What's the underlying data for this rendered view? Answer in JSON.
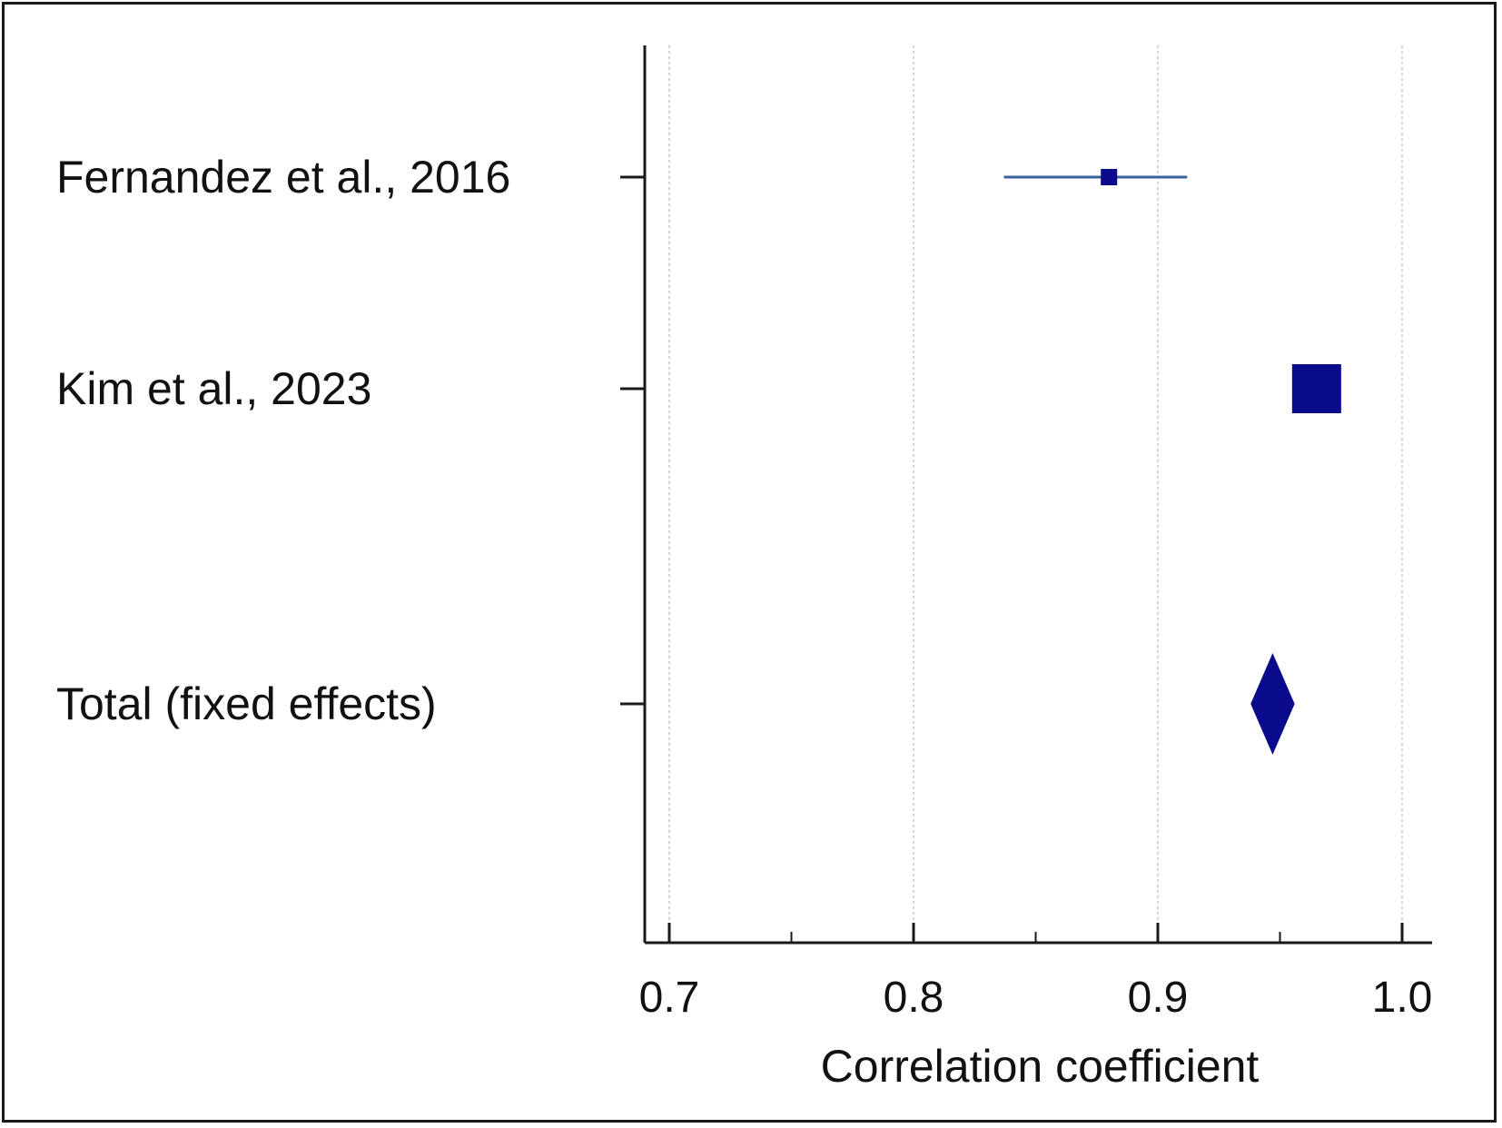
{
  "chart_data": {
    "type": "forest",
    "title": "",
    "xlabel": "Correlation coefficient",
    "ylabel": "",
    "xlim": [
      0.69,
      1.01
    ],
    "xticks": [
      0.7,
      0.8,
      0.9,
      1.0
    ],
    "xtick_labels": [
      "0.7",
      "0.8",
      "0.9",
      "1.0"
    ],
    "xminor_ticks": [
      0.75,
      0.85,
      0.95
    ],
    "grid": true,
    "rows": [
      {
        "label": "Fernandez et al., 2016",
        "estimate": 0.88,
        "ci_low": 0.837,
        "ci_high": 0.912,
        "marker": "square",
        "weight": "small"
      },
      {
        "label": "Kim et al., 2023",
        "estimate": 0.965,
        "ci_low": 0.96,
        "ci_high": 0.97,
        "marker": "square",
        "weight": "large"
      },
      {
        "label": "Total (fixed effects)",
        "estimate": 0.947,
        "ci_low": 0.938,
        "ci_high": 0.956,
        "marker": "diamond"
      }
    ],
    "colors": {
      "marker": "#0a0a8c",
      "ci_line": "#3a5f9a",
      "axis": "#1a1a1a",
      "grid": "#c8c8c8"
    }
  }
}
